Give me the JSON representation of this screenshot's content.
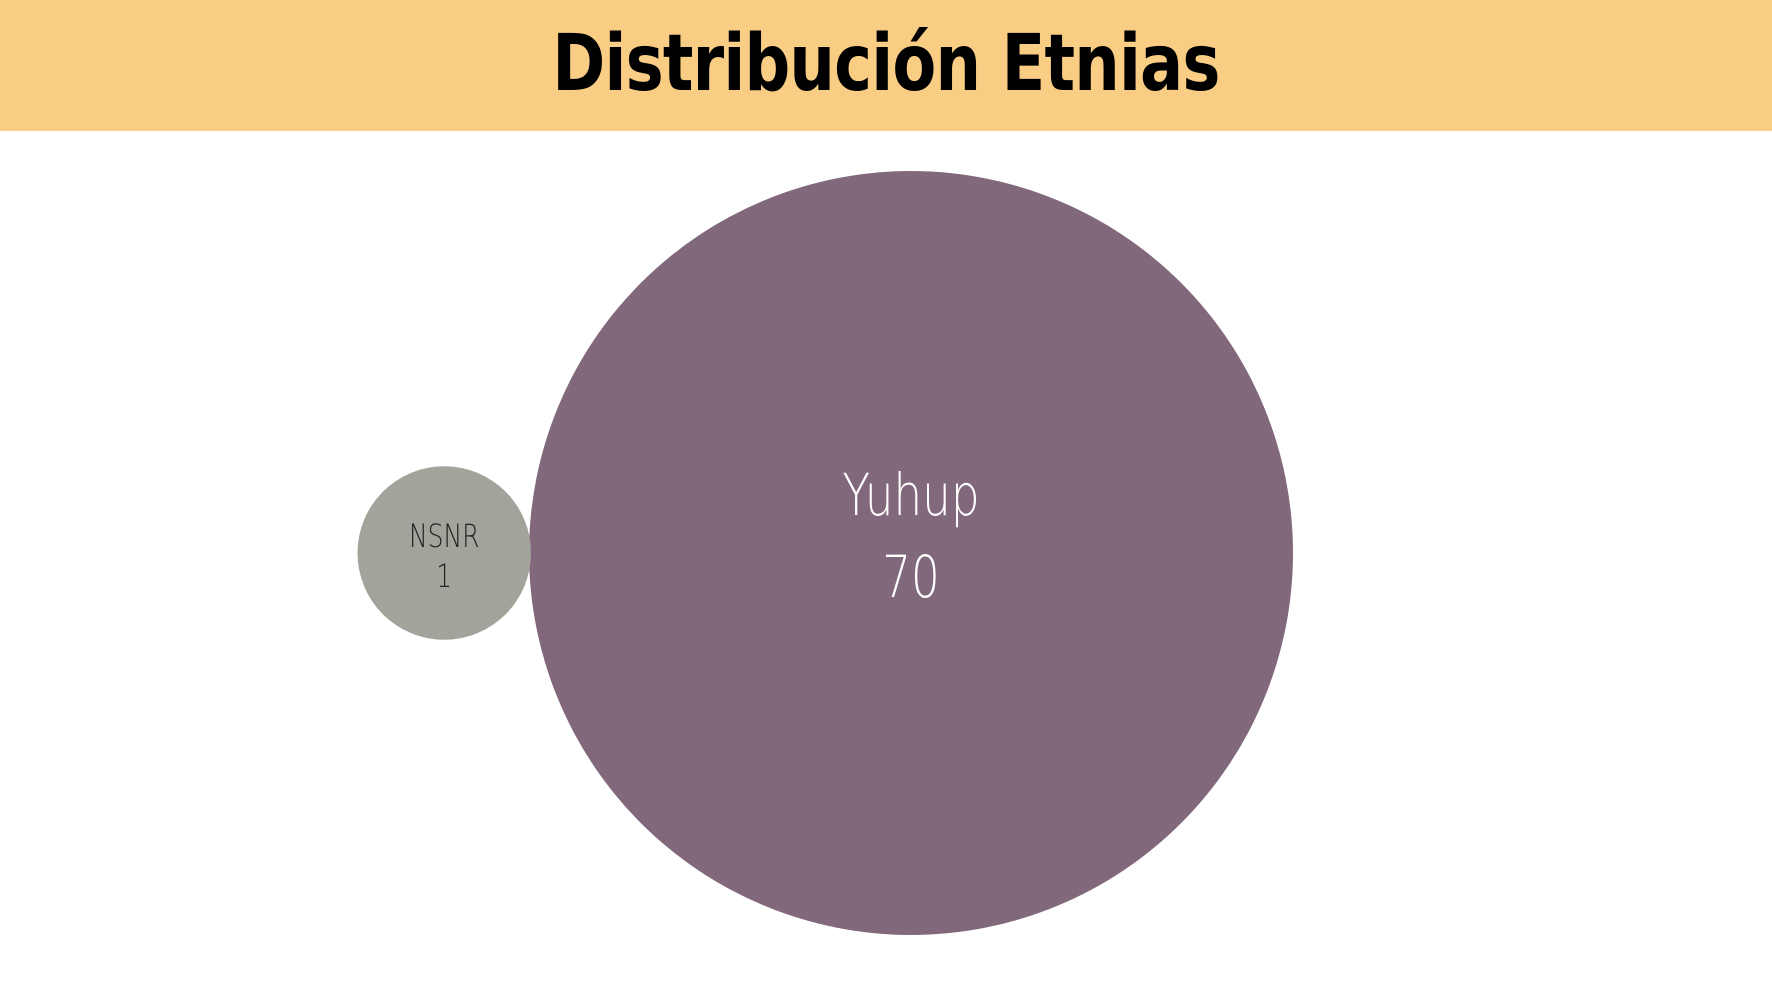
{
  "title": "Distribución Etnias",
  "colors": {
    "header_bg": "#F9CD84",
    "page_bg": "#FFFFFF"
  },
  "chart_data": {
    "type": "bubble",
    "title": "Distribución Etnias",
    "series": [
      {
        "label": "Yuhup",
        "value": 70,
        "color": "#82687B",
        "text_color": "#FFFFFF"
      },
      {
        "label": "NSNR",
        "value": 1,
        "color": "#A3A39B",
        "text_color": "#222222"
      }
    ]
  }
}
